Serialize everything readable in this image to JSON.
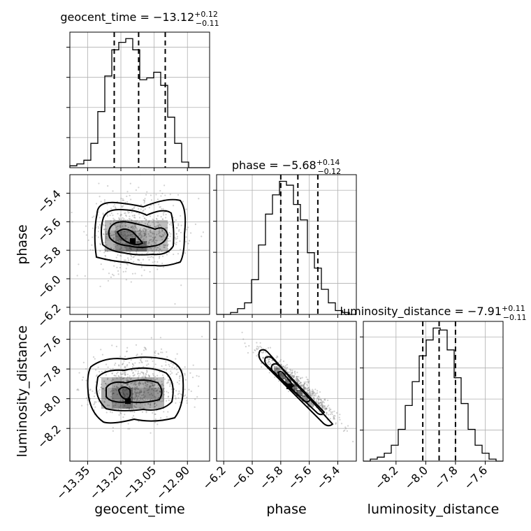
{
  "chart_data": {
    "type": "corner",
    "parameters": [
      "geocent_time",
      "phase",
      "luminosity_distance"
    ],
    "grid": true,
    "titles": [
      {
        "param": "geocent_time",
        "label": "geocent_time = −13.12",
        "plus": "+0.12",
        "minus": "−0.11"
      },
      {
        "param": "phase",
        "label": "phase = −5.68",
        "plus": "+0.14",
        "minus": "−0.12"
      },
      {
        "param": "luminosity_distance",
        "label": "luminosity_distance = −7.91",
        "plus": "+0.11",
        "minus": "−0.11"
      }
    ],
    "ranges": {
      "geocent_time": [
        -13.43,
        -12.8
      ],
      "phase": [
        -6.25,
        -5.27
      ],
      "luminosity_distance": [
        -8.42,
        -7.48
      ]
    },
    "ticks": {
      "geocent_time": {
        "values": [
          -13.35,
          -13.2,
          -13.05,
          -12.9
        ],
        "labels": [
          "−13.35",
          "−13.20",
          "−13.05",
          "−12.90"
        ]
      },
      "phase": {
        "values": [
          -6.2,
          -6.0,
          -5.8,
          -5.6,
          -5.4
        ],
        "labels": [
          "−6.2",
          "−6.0",
          "−5.8",
          "−5.6",
          "−5.4"
        ]
      },
      "luminosity_distance": {
        "values": [
          -8.2,
          -8.0,
          -7.8,
          -7.6
        ],
        "labels": [
          "−8.2",
          "−8.0",
          "−7.8",
          "−7.6"
        ]
      }
    },
    "quantiles": {
      "geocent_time": [
        -13.23,
        -13.12,
        -13.0
      ],
      "phase": [
        -5.8,
        -5.68,
        -5.54
      ],
      "luminosity_distance": [
        -8.02,
        -7.91,
        -7.8
      ]
    },
    "histograms": {
      "geocent_time": {
        "edges_range": [
          -13.43,
          -12.8
        ],
        "counts": [
          1,
          2,
          4,
          13,
          30,
          49,
          63,
          67,
          69,
          63,
          47,
          48,
          51,
          44,
          27,
          13,
          3,
          0,
          0,
          0
        ]
      },
      "phase": {
        "edges_range": [
          -6.25,
          -5.27
        ],
        "counts": [
          0,
          0,
          1,
          3,
          6,
          18,
          36,
          52,
          62,
          69,
          67,
          57,
          49,
          32,
          24,
          13,
          6,
          2,
          1,
          0
        ]
      },
      "luminosity_distance": {
        "edges_range": [
          -8.42,
          -7.48
        ],
        "counts": [
          0,
          1,
          2,
          4,
          8,
          16,
          28,
          40,
          53,
          61,
          67,
          66,
          56,
          42,
          29,
          16,
          8,
          4,
          1,
          0
        ]
      }
    }
  }
}
